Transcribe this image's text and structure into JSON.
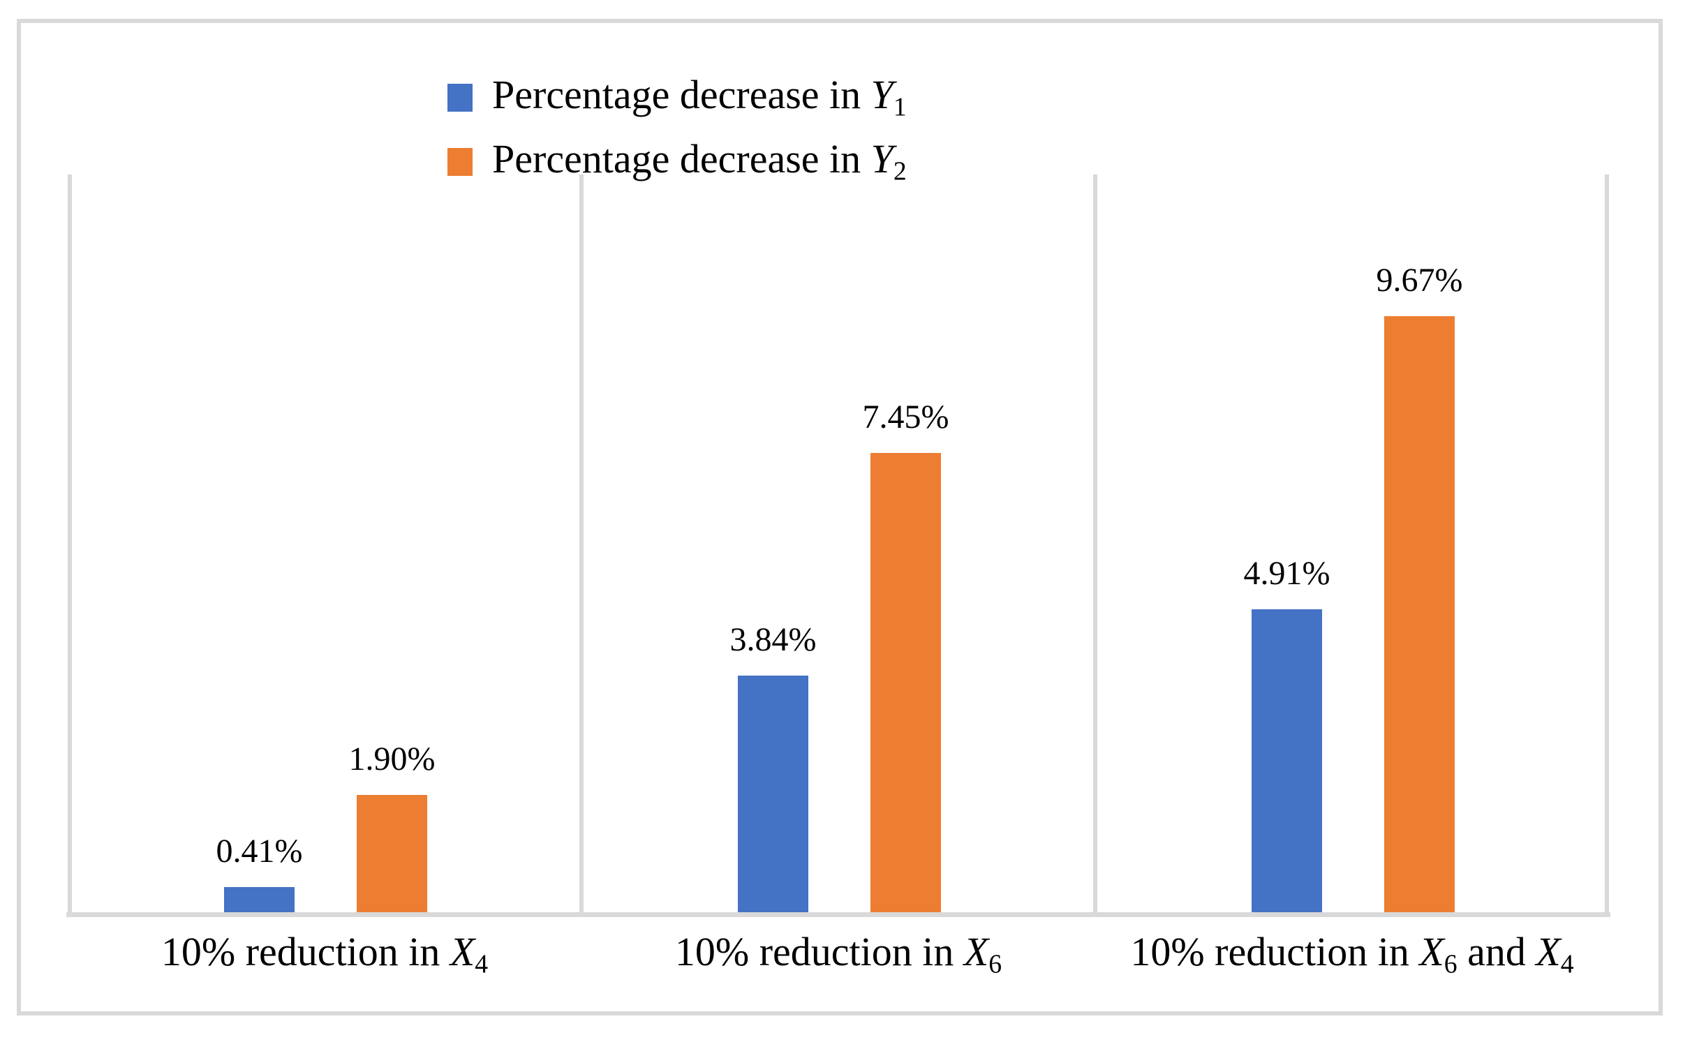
{
  "chart_data": {
    "type": "bar",
    "title": "",
    "categories": [
      "10% reduction in X4",
      "10% reduction in X6",
      "10% reduction in X6 and X4"
    ],
    "categories_rich": [
      {
        "segments": [
          {
            "t": "10% reduction in "
          },
          {
            "t": "X",
            "italic": true
          },
          {
            "t": "4",
            "sub": true
          }
        ]
      },
      {
        "segments": [
          {
            "t": "10% reduction in "
          },
          {
            "t": "X",
            "italic": true
          },
          {
            "t": "6",
            "sub": true
          }
        ]
      },
      {
        "segments": [
          {
            "t": "10% reduction in "
          },
          {
            "t": "X",
            "italic": true
          },
          {
            "t": "6",
            "sub": true
          },
          {
            "t": " and "
          },
          {
            "t": "X",
            "italic": true
          },
          {
            "t": "4",
            "sub": true
          }
        ]
      }
    ],
    "series": [
      {
        "name": "Percentage decrease in Y1",
        "name_rich": {
          "segments": [
            {
              "t": "Percentage decrease in "
            },
            {
              "t": "Y",
              "italic": true
            },
            {
              "t": "1",
              "sub": true
            }
          ]
        },
        "color": "#4472c4",
        "values": [
          0.41,
          3.84,
          4.91
        ],
        "data_labels": [
          "0.41%",
          "3.84%",
          "4.91%"
        ]
      },
      {
        "name": "Percentage decrease in Y2",
        "name_rich": {
          "segments": [
            {
              "t": "Percentage decrease in "
            },
            {
              "t": "Y",
              "italic": true
            },
            {
              "t": "2",
              "sub": true
            }
          ]
        },
        "color": "#ed7d31",
        "values": [
          1.9,
          7.45,
          9.67
        ],
        "data_labels": [
          "1.90%",
          "7.45%",
          "9.67%"
        ]
      }
    ],
    "ylim": [
      0,
      12
    ],
    "y_axis_labels_visible": false,
    "grid": "vertical-category-dividers",
    "legend_position": "top",
    "axis_color": "#d9d9d9",
    "frame_color": "#d9d9d9"
  }
}
